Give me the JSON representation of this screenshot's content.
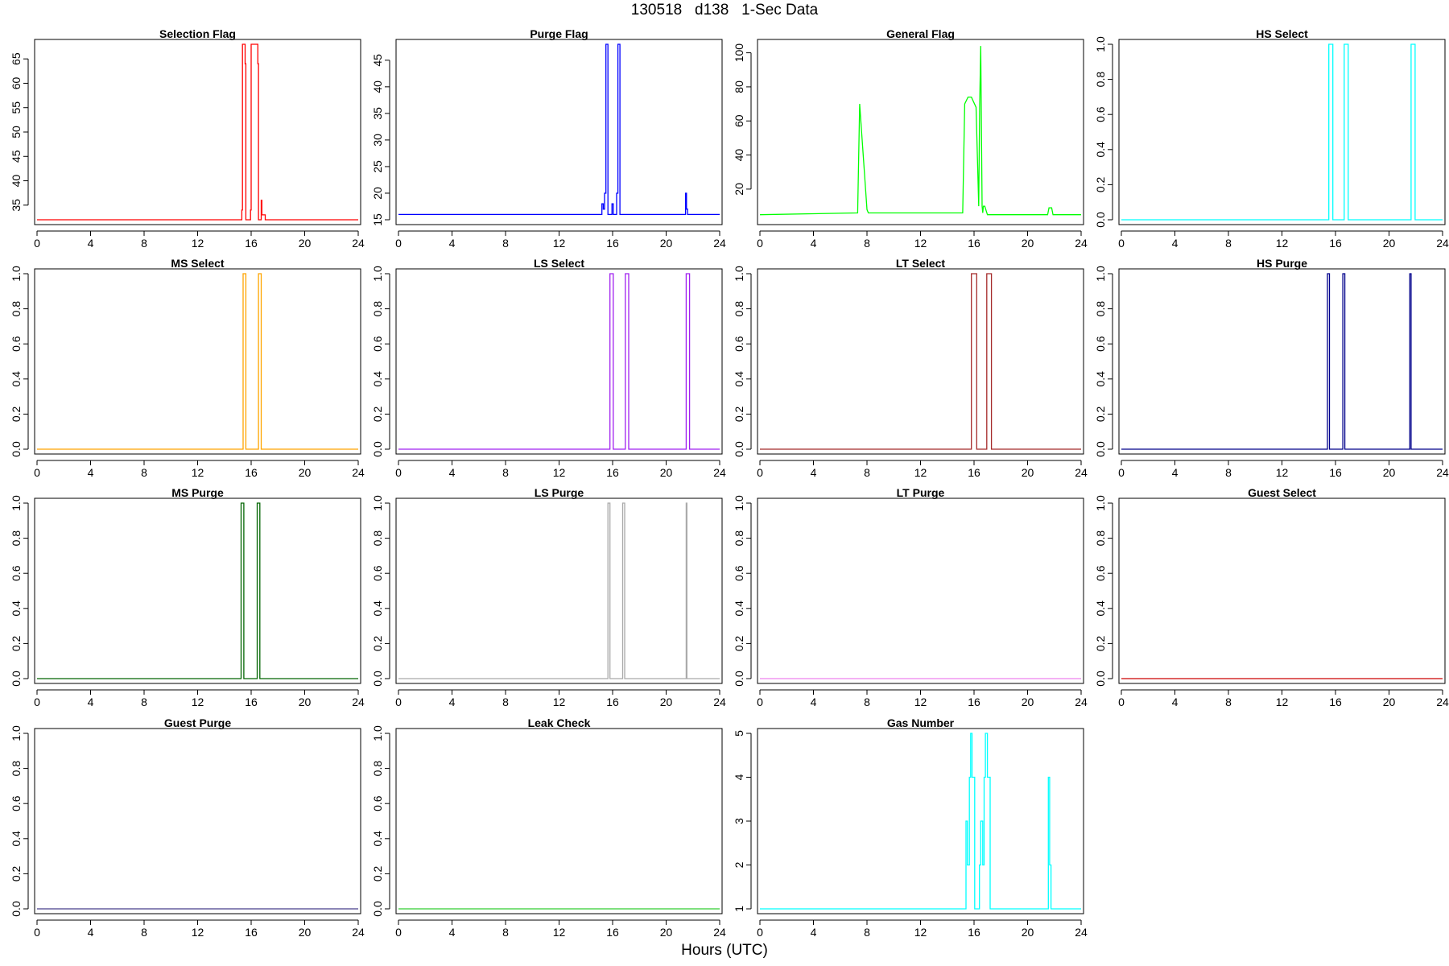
{
  "page": {
    "title": "130518   d138   1-Sec Data",
    "xlabel": "Hours (UTC)"
  },
  "chart_data": [
    {
      "type": "line",
      "title": "Selection Flag",
      "color": "#ff0000",
      "xlim": [
        0,
        24
      ],
      "ylim": [
        32,
        68
      ],
      "xticks": [
        0,
        4,
        8,
        12,
        16,
        20,
        24
      ],
      "yticks": [
        35,
        40,
        45,
        50,
        55,
        60,
        65
      ],
      "series": [
        {
          "name": "Selection Flag",
          "step": true,
          "x": [
            0,
            15.3,
            15.35,
            15.55,
            15.6,
            15.95,
            16.0,
            16.5,
            16.55,
            16.75,
            16.8,
            17.05,
            17.1,
            21.5,
            21.55,
            21.7,
            21.75,
            24
          ],
          "y": [
            32,
            34,
            68,
            64,
            32,
            34,
            68,
            64,
            32,
            36,
            33,
            32,
            32,
            32,
            32,
            32,
            32,
            32
          ]
        }
      ]
    },
    {
      "type": "line",
      "title": "Purge Flag",
      "color": "#0000ff",
      "xlim": [
        0,
        24
      ],
      "ylim": [
        15,
        48
      ],
      "xticks": [
        0,
        4,
        8,
        12,
        16,
        20,
        24
      ],
      "yticks": [
        15,
        20,
        25,
        30,
        35,
        40,
        45
      ],
      "series": [
        {
          "name": "Purge Flag",
          "step": true,
          "x": [
            0,
            15.2,
            15.3,
            15.4,
            15.5,
            15.65,
            15.95,
            16.05,
            16.3,
            16.4,
            16.55,
            16.65,
            16.95,
            21.45,
            21.52,
            21.6,
            24
          ],
          "y": [
            16,
            18,
            17,
            20,
            48,
            16,
            18,
            16,
            20,
            48,
            16,
            16,
            16,
            20,
            17,
            16,
            16
          ]
        }
      ]
    },
    {
      "type": "line",
      "title": "General Flag",
      "color": "#00ff00",
      "xlim": [
        0,
        24
      ],
      "ylim": [
        2,
        105
      ],
      "xticks": [
        0,
        4,
        8,
        12,
        16,
        20,
        24
      ],
      "yticks": [
        20,
        40,
        60,
        80,
        100
      ],
      "series": [
        {
          "name": "General Flag",
          "step": false,
          "x": [
            0,
            7.3,
            7.45,
            8.0,
            8.1,
            15.15,
            15.3,
            15.55,
            15.8,
            16.15,
            16.35,
            16.42,
            16.5,
            16.6,
            16.65,
            16.7,
            16.8,
            17.0,
            17.2,
            21.5,
            21.6,
            21.8,
            21.9,
            24
          ],
          "y": [
            5,
            6,
            70,
            8,
            6,
            6,
            70,
            74,
            74,
            68,
            10,
            70,
            104,
            10,
            6,
            10,
            10,
            5,
            5,
            5,
            9,
            9,
            5,
            5
          ]
        }
      ]
    },
    {
      "type": "line",
      "title": "HS Select",
      "color": "#00ffff",
      "xlim": [
        0,
        24
      ],
      "ylim": [
        0,
        1
      ],
      "xticks": [
        0,
        4,
        8,
        12,
        16,
        20,
        24
      ],
      "yticks": [
        0.0,
        0.2,
        0.4,
        0.6,
        0.8,
        1.0
      ],
      "series": [
        {
          "name": "HS Select",
          "step": true,
          "x": [
            0,
            15.5,
            15.8,
            16.65,
            16.95,
            21.65,
            21.95,
            24
          ],
          "y": [
            0,
            1,
            0,
            1,
            0,
            1,
            0,
            0
          ]
        }
      ]
    },
    {
      "type": "line",
      "title": "MS Select",
      "color": "#ffa500",
      "xlim": [
        0,
        24
      ],
      "ylim": [
        0,
        1
      ],
      "xticks": [
        0,
        4,
        8,
        12,
        16,
        20,
        24
      ],
      "yticks": [
        0.0,
        0.2,
        0.4,
        0.6,
        0.8,
        1.0
      ],
      "series": [
        {
          "name": "MS Select",
          "step": true,
          "x": [
            0,
            15.4,
            15.6,
            16.55,
            16.75,
            24
          ],
          "y": [
            0,
            1,
            0,
            1,
            0,
            0
          ]
        }
      ]
    },
    {
      "type": "line",
      "title": "LS Select",
      "color": "#a020f0",
      "xlim": [
        0,
        24
      ],
      "ylim": [
        0,
        1
      ],
      "xticks": [
        0,
        4,
        8,
        12,
        16,
        20,
        24
      ],
      "yticks": [
        0.0,
        0.2,
        0.4,
        0.6,
        0.8,
        1.0
      ],
      "series": [
        {
          "name": "LS Select",
          "step": true,
          "x": [
            0,
            15.8,
            16.05,
            16.95,
            17.2,
            21.5,
            21.75,
            24
          ],
          "y": [
            0,
            1,
            0,
            1,
            0,
            1,
            0,
            0
          ]
        }
      ]
    },
    {
      "type": "line",
      "title": "LT Select",
      "color": "#a52a2a",
      "xlim": [
        0,
        24
      ],
      "ylim": [
        0,
        1
      ],
      "xticks": [
        0,
        4,
        8,
        12,
        16,
        20,
        24
      ],
      "yticks": [
        0.0,
        0.2,
        0.4,
        0.6,
        0.8,
        1.0
      ],
      "series": [
        {
          "name": "LT Select",
          "step": true,
          "x": [
            0,
            15.8,
            16.2,
            16.95,
            17.3,
            24
          ],
          "y": [
            0,
            1,
            0,
            1,
            0,
            0
          ]
        }
      ]
    },
    {
      "type": "line",
      "title": "HS Purge",
      "color": "#00008b",
      "xlim": [
        0,
        24
      ],
      "ylim": [
        0,
        1
      ],
      "xticks": [
        0,
        4,
        8,
        12,
        16,
        20,
        24
      ],
      "yticks": [
        0.0,
        0.2,
        0.4,
        0.6,
        0.8,
        1.0
      ],
      "series": [
        {
          "name": "HS Purge",
          "step": true,
          "x": [
            0,
            15.4,
            15.55,
            16.55,
            16.7,
            21.55,
            21.65,
            24
          ],
          "y": [
            0,
            1,
            0,
            1,
            0,
            1,
            0,
            0
          ]
        }
      ]
    },
    {
      "type": "line",
      "title": "MS Purge",
      "color": "#006400",
      "xlim": [
        0,
        24
      ],
      "ylim": [
        0,
        1
      ],
      "xticks": [
        0,
        4,
        8,
        12,
        16,
        20,
        24
      ],
      "yticks": [
        0.0,
        0.2,
        0.4,
        0.6,
        0.8,
        1.0
      ],
      "series": [
        {
          "name": "MS Purge",
          "step": true,
          "x": [
            0,
            15.25,
            15.45,
            16.45,
            16.65,
            24
          ],
          "y": [
            0,
            1,
            0,
            1,
            0,
            0
          ]
        }
      ]
    },
    {
      "type": "line",
      "title": "LS Purge",
      "color": "#a9a9a9",
      "xlim": [
        0,
        24
      ],
      "ylim": [
        0,
        1
      ],
      "xticks": [
        0,
        4,
        8,
        12,
        16,
        20,
        24
      ],
      "yticks": [
        0.0,
        0.2,
        0.4,
        0.6,
        0.8,
        1.0
      ],
      "series": [
        {
          "name": "LS Purge",
          "step": true,
          "x": [
            0,
            15.65,
            15.8,
            16.75,
            16.9,
            21.5,
            21.55,
            24
          ],
          "y": [
            0,
            1,
            0,
            1,
            0,
            1,
            0,
            0
          ]
        }
      ]
    },
    {
      "type": "line",
      "title": "LT Purge",
      "color": "#ee82ee",
      "xlim": [
        0,
        24
      ],
      "ylim": [
        0,
        1
      ],
      "xticks": [
        0,
        4,
        8,
        12,
        16,
        20,
        24
      ],
      "yticks": [
        0.0,
        0.2,
        0.4,
        0.6,
        0.8,
        1.0
      ],
      "series": [
        {
          "name": "LT Purge",
          "step": true,
          "x": [
            0,
            24
          ],
          "y": [
            0,
            0
          ]
        }
      ]
    },
    {
      "type": "line",
      "title": "Guest Select",
      "color": "#cc0000",
      "xlim": [
        0,
        24
      ],
      "ylim": [
        0,
        1
      ],
      "xticks": [
        0,
        4,
        8,
        12,
        16,
        20,
        24
      ],
      "yticks": [
        0.0,
        0.2,
        0.4,
        0.6,
        0.8,
        1.0
      ],
      "series": [
        {
          "name": "Guest Select",
          "step": true,
          "x": [
            0,
            24
          ],
          "y": [
            0,
            0
          ]
        }
      ]
    },
    {
      "type": "line",
      "title": "Guest Purge",
      "color": "#483d8b",
      "xlim": [
        0,
        24
      ],
      "ylim": [
        0,
        1
      ],
      "xticks": [
        0,
        4,
        8,
        12,
        16,
        20,
        24
      ],
      "yticks": [
        0.0,
        0.2,
        0.4,
        0.6,
        0.8,
        1.0
      ],
      "series": [
        {
          "name": "Guest Purge",
          "step": true,
          "x": [
            0,
            24
          ],
          "y": [
            0,
            0
          ]
        }
      ]
    },
    {
      "type": "line",
      "title": "Leak Check",
      "color": "#32cd32",
      "xlim": [
        0,
        24
      ],
      "ylim": [
        0,
        1
      ],
      "xticks": [
        0,
        4,
        8,
        12,
        16,
        20,
        24
      ],
      "yticks": [
        0.0,
        0.2,
        0.4,
        0.6,
        0.8,
        1.0
      ],
      "series": [
        {
          "name": "Leak Check",
          "step": true,
          "x": [
            0,
            24
          ],
          "y": [
            0,
            0
          ]
        }
      ]
    },
    {
      "type": "line",
      "title": "Gas Number",
      "color": "#00ffff",
      "xlim": [
        0,
        24
      ],
      "ylim": [
        1,
        5
      ],
      "xticks": [
        0,
        4,
        8,
        12,
        16,
        20,
        24
      ],
      "yticks": [
        1,
        2,
        3,
        4,
        5
      ],
      "series": [
        {
          "name": "Gas Number",
          "step": true,
          "x": [
            0,
            15.4,
            15.5,
            15.65,
            15.75,
            15.85,
            16.05,
            16.4,
            16.5,
            16.65,
            16.75,
            16.85,
            17.0,
            17.2,
            21.55,
            21.65,
            21.75,
            21.85,
            24
          ],
          "y": [
            1,
            3,
            2,
            4,
            5,
            4,
            1,
            2,
            3,
            2,
            4,
            5,
            4,
            1,
            4,
            2,
            1,
            1,
            1
          ]
        }
      ]
    }
  ]
}
